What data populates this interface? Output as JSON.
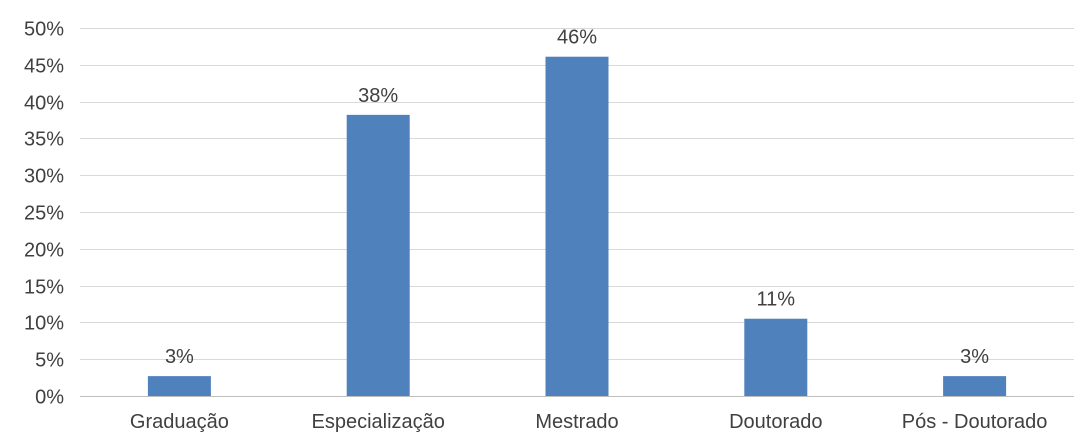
{
  "chart_data": {
    "type": "bar",
    "categories": [
      "Graduação",
      "Especialização",
      "Mestrado",
      "Doutorado",
      "Pós - Doutorado"
    ],
    "values": [
      2.7,
      38.2,
      46.1,
      10.5,
      2.7
    ],
    "data_labels": [
      "3%",
      "38%",
      "46%",
      "11%",
      "3%"
    ],
    "title": "",
    "xlabel": "",
    "ylabel": "",
    "ylim": [
      0,
      50
    ],
    "y_ticks": [
      0,
      5,
      10,
      15,
      20,
      25,
      30,
      35,
      40,
      45,
      50
    ],
    "y_tick_labels": [
      "0%",
      "5%",
      "10%",
      "15%",
      "20%",
      "25%",
      "30%",
      "35%",
      "40%",
      "45%",
      "50%"
    ],
    "grid": true,
    "legend": "none",
    "bar_color": "#4f81bd"
  }
}
